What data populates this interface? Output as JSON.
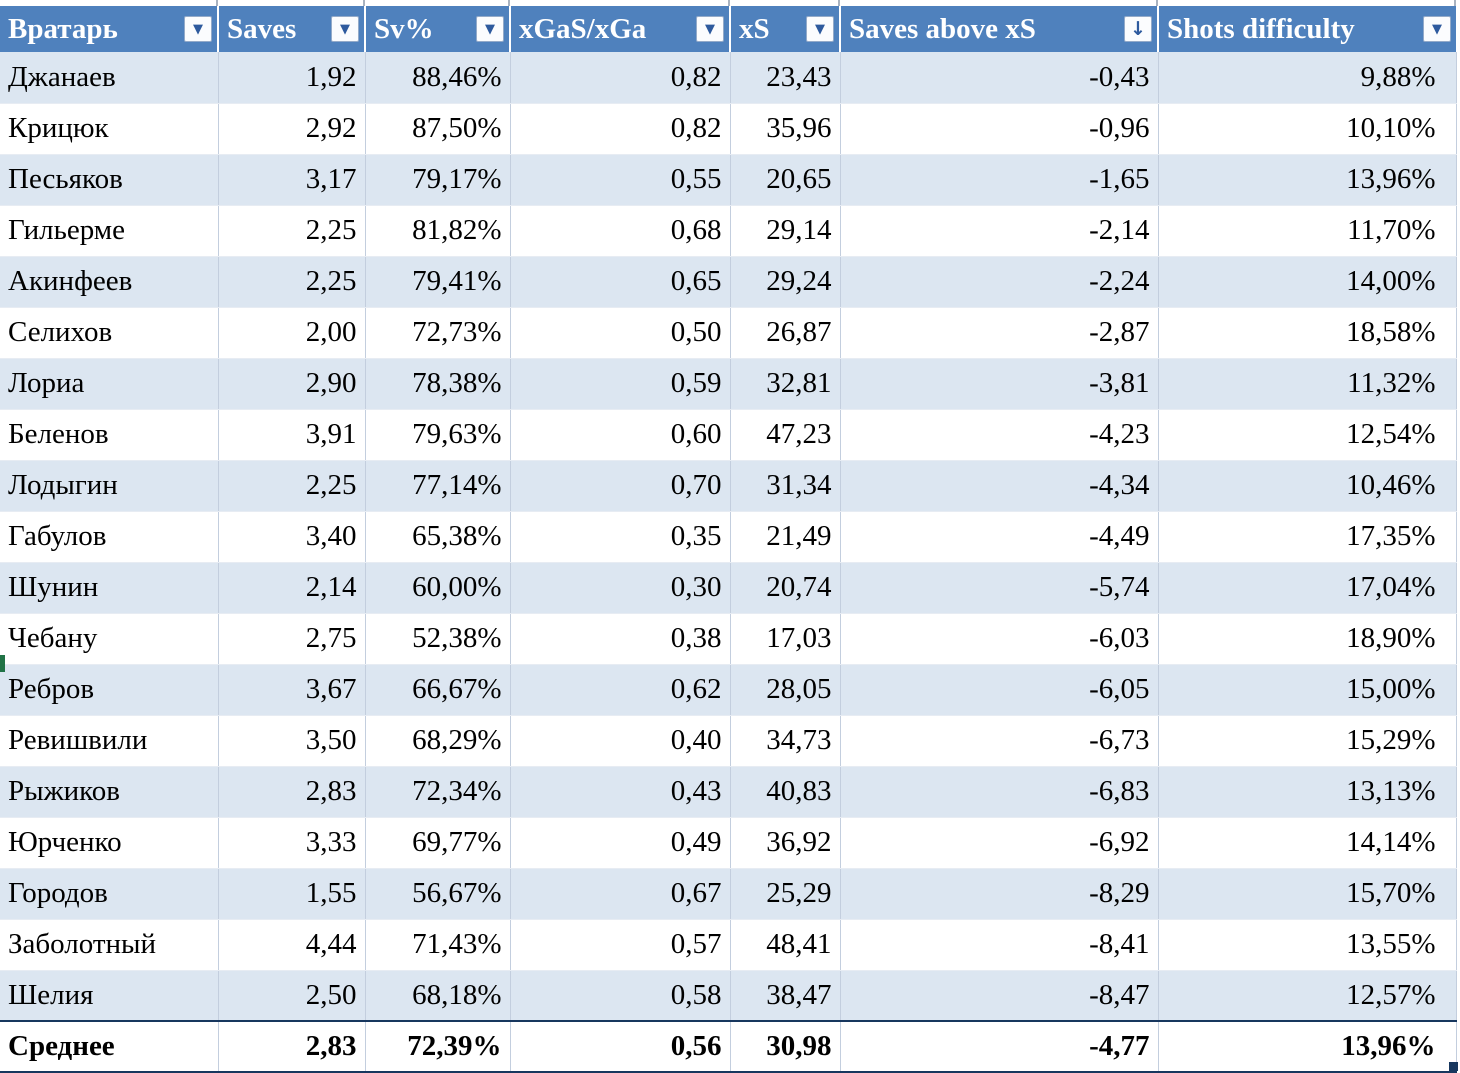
{
  "table": {
    "columns": [
      {
        "key": "goalkeeper",
        "label": "Вратарь",
        "filter": "dropdown"
      },
      {
        "key": "saves",
        "label": "Saves",
        "filter": "dropdown"
      },
      {
        "key": "sv_pct",
        "label": "Sv%",
        "filter": "dropdown"
      },
      {
        "key": "xgas_xga",
        "label": "xGaS/xGa",
        "filter": "dropdown"
      },
      {
        "key": "xs",
        "label": "xS",
        "filter": "dropdown"
      },
      {
        "key": "saves_above_xs",
        "label": "Saves above xS",
        "filter": "sorted-descending"
      },
      {
        "key": "shots_difficulty",
        "label": "Shots difficulty",
        "filter": "dropdown"
      }
    ],
    "rows": [
      [
        "Джанаев",
        "1,92",
        "88,46%",
        "0,82",
        "23,43",
        "-0,43",
        "9,88%"
      ],
      [
        "Крицюк",
        "2,92",
        "87,50%",
        "0,82",
        "35,96",
        "-0,96",
        "10,10%"
      ],
      [
        "Песьяков",
        "3,17",
        "79,17%",
        "0,55",
        "20,65",
        "-1,65",
        "13,96%"
      ],
      [
        "Гильерме",
        "2,25",
        "81,82%",
        "0,68",
        "29,14",
        "-2,14",
        "11,70%"
      ],
      [
        "Акинфеев",
        "2,25",
        "79,41%",
        "0,65",
        "29,24",
        "-2,24",
        "14,00%"
      ],
      [
        "Селихов",
        "2,00",
        "72,73%",
        "0,50",
        "26,87",
        "-2,87",
        "18,58%"
      ],
      [
        "Лориа",
        "2,90",
        "78,38%",
        "0,59",
        "32,81",
        "-3,81",
        "11,32%"
      ],
      [
        "Беленов",
        "3,91",
        "79,63%",
        "0,60",
        "47,23",
        "-4,23",
        "12,54%"
      ],
      [
        "Лодыгин",
        "2,25",
        "77,14%",
        "0,70",
        "31,34",
        "-4,34",
        "10,46%"
      ],
      [
        "Габулов",
        "3,40",
        "65,38%",
        "0,35",
        "21,49",
        "-4,49",
        "17,35%"
      ],
      [
        "Шунин",
        "2,14",
        "60,00%",
        "0,30",
        "20,74",
        "-5,74",
        "17,04%"
      ],
      [
        "Чебану",
        "2,75",
        "52,38%",
        "0,38",
        "17,03",
        "-6,03",
        "18,90%"
      ],
      [
        "Ребров",
        "3,67",
        "66,67%",
        "0,62",
        "28,05",
        "-6,05",
        "15,00%"
      ],
      [
        "Ревишвили",
        "3,50",
        "68,29%",
        "0,40",
        "34,73",
        "-6,73",
        "15,29%"
      ],
      [
        "Рыжиков",
        "2,83",
        "72,34%",
        "0,43",
        "40,83",
        "-6,83",
        "13,13%"
      ],
      [
        "Юрченко",
        "3,33",
        "69,77%",
        "0,49",
        "36,92",
        "-6,92",
        "14,14%"
      ],
      [
        "Городов",
        "1,55",
        "56,67%",
        "0,67",
        "25,29",
        "-8,29",
        "15,70%"
      ],
      [
        "Заболотный",
        "4,44",
        "71,43%",
        "0,57",
        "48,41",
        "-8,41",
        "13,55%"
      ],
      [
        "Шелия",
        "2,50",
        "68,18%",
        "0,58",
        "38,47",
        "-8,47",
        "12,57%"
      ]
    ],
    "total_row": [
      "Среднее",
      "2,83",
      "72,39%",
      "0,56",
      "30,98",
      "-4,77",
      "13,96%"
    ],
    "icons": {
      "filter_dropdown": "▼",
      "sort_descending": "↓"
    },
    "colors": {
      "header_bg": "#4F81BD",
      "header_text": "#FFFFFF",
      "band_row_bg": "#DCE6F1",
      "plain_row_bg": "#FFFFFF",
      "total_border": "#17375E",
      "filter_arrow": "#2E5A9E",
      "sheet_marker_green": "#217346"
    }
  }
}
